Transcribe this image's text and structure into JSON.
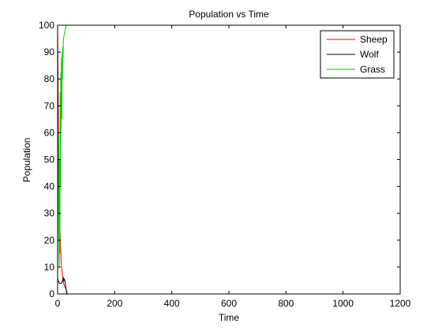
{
  "chart_data": {
    "type": "line",
    "title": "Population vs Time",
    "xlabel": "Time",
    "ylabel": "Population",
    "xlim": [
      0,
      1200
    ],
    "ylim": [
      0,
      100
    ],
    "xticks": [
      0,
      200,
      400,
      600,
      800,
      1000,
      1200
    ],
    "yticks": [
      0,
      10,
      20,
      30,
      40,
      50,
      60,
      70,
      80,
      90,
      100
    ],
    "grid": false,
    "legend": {
      "placement": "top-right",
      "entries": [
        "Sheep",
        "Wolf",
        "Grass"
      ]
    },
    "series": [
      {
        "name": "Sheep",
        "color": "#ff0000",
        "x": [
          0,
          2,
          4,
          6,
          8,
          10,
          12,
          14,
          16,
          18,
          20,
          22,
          24,
          26,
          28,
          30,
          32,
          34
        ],
        "y": [
          100,
          75,
          50,
          35,
          25,
          18,
          13,
          10,
          8,
          6,
          4.5,
          3.5,
          3,
          2.5,
          2,
          1.5,
          1,
          0
        ]
      },
      {
        "name": "Wolf",
        "color": "#000000",
        "x": [
          0,
          2,
          4,
          6,
          8,
          10,
          12,
          14,
          16,
          18,
          20,
          22,
          24,
          26,
          28,
          30,
          32
        ],
        "y": [
          6,
          5,
          4.5,
          4,
          4,
          4,
          4,
          4,
          4.5,
          5.5,
          6,
          5,
          5.5,
          4.5,
          3,
          1.5,
          0
        ]
      },
      {
        "name": "Grass",
        "color": "#00cc00",
        "x": [
          0,
          1,
          2,
          3,
          4,
          5,
          6,
          7,
          8,
          9,
          10,
          11,
          12,
          13,
          14,
          15,
          16,
          17,
          18,
          19,
          20,
          22,
          24,
          26,
          28,
          30,
          32,
          34,
          36,
          38
        ],
        "y": [
          0,
          30,
          45,
          60,
          35,
          20,
          10,
          50,
          15,
          75,
          40,
          82,
          60,
          85,
          88,
          65,
          90,
          80,
          92,
          88,
          94,
          96,
          97,
          98,
          99,
          100,
          100,
          100,
          100,
          100
        ]
      }
    ]
  }
}
